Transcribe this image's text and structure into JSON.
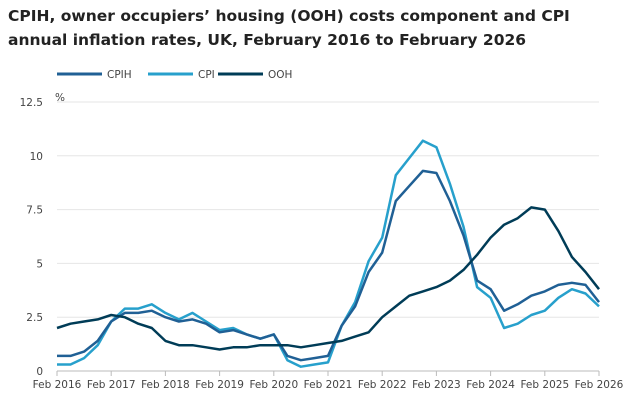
{
  "chart_data": {
    "type": "line",
    "title": "CPIH, owner occupiers’ housing (OOH) costs component and CPI annual inflation rates, UK, February 2016 to February 2026",
    "ylabel": "%",
    "ylim": [
      0,
      12.5
    ],
    "yticks": [
      "0",
      "2.5",
      "5",
      "7.5",
      "10",
      "12.5"
    ],
    "xticks": [
      "Feb 2016",
      "Feb 2017",
      "Feb 2018",
      "Feb 2019",
      "Feb 2020",
      "Feb 2021",
      "Feb 2022",
      "Feb 2023",
      "Feb 2024",
      "Feb 2025",
      "Feb 2026"
    ],
    "x_start": "Feb 2016",
    "x_end": "Feb 2026",
    "x_step": "quarterly",
    "grid": "horizontal",
    "legend": "top-left",
    "series": [
      {
        "name": "CPIH",
        "color": "#206095",
        "values": [
          0.7,
          0.7,
          0.9,
          1.4,
          2.3,
          2.7,
          2.7,
          2.8,
          2.5,
          2.3,
          2.4,
          2.2,
          1.8,
          1.9,
          1.7,
          1.5,
          1.7,
          0.7,
          0.5,
          0.6,
          0.7,
          2.1,
          3.0,
          4.6,
          5.5,
          7.9,
          8.6,
          9.3,
          9.2,
          7.9,
          6.3,
          4.2,
          3.8,
          2.8,
          3.1,
          3.5,
          3.7,
          4.0,
          4.1,
          4.0,
          3.2
        ]
      },
      {
        "name": "CPI",
        "color": "#27a0cc",
        "values": [
          0.3,
          0.3,
          0.6,
          1.2,
          2.3,
          2.9,
          2.9,
          3.1,
          2.7,
          2.4,
          2.7,
          2.3,
          1.9,
          2.0,
          1.7,
          1.5,
          1.7,
          0.5,
          0.2,
          0.3,
          0.4,
          2.1,
          3.2,
          5.1,
          6.2,
          9.1,
          9.9,
          10.7,
          10.4,
          8.7,
          6.7,
          3.9,
          3.4,
          2.0,
          2.2,
          2.6,
          2.8,
          3.4,
          3.8,
          3.6,
          3.0
        ]
      },
      {
        "name": "OOH",
        "color": "#003c57",
        "values": [
          2.0,
          2.2,
          2.3,
          2.4,
          2.6,
          2.5,
          2.2,
          2.0,
          1.4,
          1.2,
          1.2,
          1.1,
          1.0,
          1.1,
          1.1,
          1.2,
          1.2,
          1.2,
          1.1,
          1.2,
          1.3,
          1.4,
          1.6,
          1.8,
          2.5,
          3.0,
          3.5,
          3.7,
          3.9,
          4.2,
          4.7,
          5.4,
          6.2,
          6.8,
          7.1,
          7.6,
          7.5,
          6.5,
          5.3,
          4.6,
          3.8
        ]
      }
    ]
  }
}
